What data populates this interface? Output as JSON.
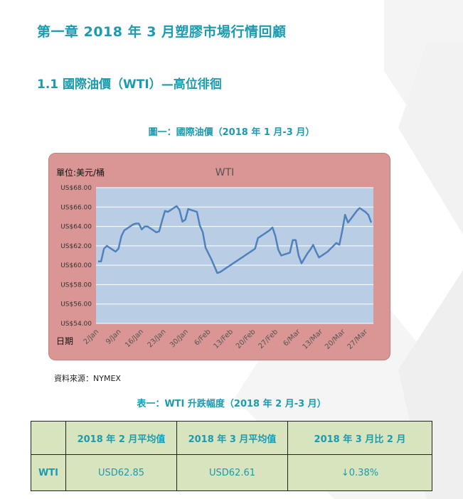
{
  "heading_chapter": "第一章  2018 年 3 月塑膠市場行情回顧",
  "heading_section": "1.1 國際油價（WTI）—高位徘徊",
  "figure_caption": "圖一：國際油價（2018 年 1 月-3 月）",
  "source_text": "資料來源：NYMEX",
  "table_caption": "表一：WTI 升跌幅度（2018 年 2 月-3 月）",
  "table": {
    "headers": [
      "",
      "2018 年 2 月平均值",
      "2018 年 3 月平均值",
      "2018 年 3 月比 2 月"
    ],
    "row": {
      "label": "WTI",
      "feb": "USD62.85",
      "mar": "USD62.61",
      "change": "↓0.38%"
    }
  },
  "colors": {
    "accent": "#1a9bb0",
    "chart_bg": "#d99694",
    "plot_bg": "#b9cde5",
    "line": "#4f81bd",
    "table_bg": "#d7e4bd"
  },
  "chart_data": {
    "type": "line",
    "title": "WTI",
    "unit_label": "單位:美元/桶",
    "xlabel": "日期",
    "ylabel": "",
    "ylim": [
      54,
      68
    ],
    "y_ticks": [
      "US$54.00",
      "US$56.00",
      "US$58.00",
      "US$60.00",
      "US$62.00",
      "US$64.00",
      "US$66.00",
      "US$68.00"
    ],
    "x_ticks": [
      "2/Jan",
      "9/Jan",
      "16/Jan",
      "23/Jan",
      "30/Jan",
      "6/Feb",
      "13/Feb",
      "20/Feb",
      "27/Feb",
      "6/Mar",
      "13/Mar",
      "20/Mar",
      "27/Mar"
    ],
    "grid": true,
    "series": [
      {
        "values": [
          60.4,
          60.4,
          61.7,
          62.0,
          61.8,
          61.6,
          61.4,
          61.7,
          63.0,
          63.6,
          63.8,
          64.0,
          64.2,
          64.3,
          64.3,
          63.7,
          64.0,
          64.0,
          63.8,
          63.6,
          63.4,
          63.5,
          64.6,
          65.6,
          65.5,
          65.7,
          65.9,
          66.1,
          65.7,
          64.5,
          64.7,
          65.8,
          65.7,
          65.6,
          65.5,
          64.1,
          63.4,
          61.8,
          61.2,
          60.6,
          59.9,
          59.2,
          59.3,
          59.5,
          59.7,
          59.9,
          60.1,
          60.3,
          60.5,
          60.7,
          60.9,
          61.1,
          61.3,
          61.5,
          61.7,
          62.8,
          63.0,
          63.2,
          63.4,
          63.6,
          63.9,
          63.0,
          61.6,
          61.0,
          61.1,
          61.2,
          61.3,
          62.6,
          62.6,
          61.0,
          60.2,
          60.7,
          61.2,
          61.6,
          62.1,
          61.4,
          60.8,
          61.0,
          61.2,
          61.4,
          61.7,
          62.0,
          62.3,
          62.1,
          63.5,
          65.2,
          64.4,
          64.8,
          65.2,
          65.6,
          65.9,
          65.7,
          65.5,
          65.2,
          64.4
        ]
      }
    ]
  }
}
